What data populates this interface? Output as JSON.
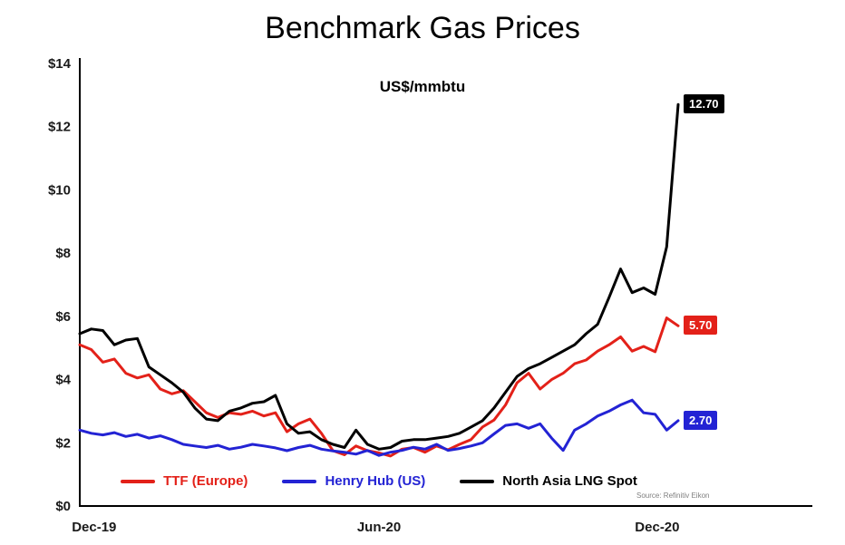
{
  "title": "Benchmark Gas Prices",
  "subtitle": "US$/mmbtu",
  "source": "Source: Refinitiv Eikon",
  "chart_data": {
    "type": "line",
    "title": "Benchmark Gas Prices",
    "subtitle_unit": "US$/mmbtu",
    "ylim": [
      0,
      14
    ],
    "grid": false,
    "legend_position": "bottom-inside",
    "yticks": {
      "labels": [
        "$0",
        "$2",
        "$4",
        "$6",
        "$8",
        "$10",
        "$12",
        "$14"
      ],
      "values": [
        0,
        2,
        4,
        6,
        8,
        10,
        12,
        14
      ]
    },
    "xticks": [
      {
        "label": "Dec-19",
        "pos": 0.024
      },
      {
        "label": "Jun-20",
        "pos": 0.5
      },
      {
        "label": "Dec-20",
        "pos": 0.965
      }
    ],
    "series": [
      {
        "name": "TTF (Europe)",
        "color": "#e32119",
        "end_label": "5.70",
        "values": [
          5.1,
          4.95,
          4.55,
          4.65,
          4.2,
          4.05,
          4.15,
          3.7,
          3.55,
          3.65,
          3.3,
          2.95,
          2.8,
          2.95,
          2.9,
          3.0,
          2.85,
          2.95,
          2.35,
          2.6,
          2.75,
          2.3,
          1.75,
          1.62,
          1.9,
          1.75,
          1.68,
          1.58,
          1.8,
          1.85,
          1.7,
          1.9,
          1.78,
          1.95,
          2.1,
          2.5,
          2.72,
          3.2,
          3.9,
          4.2,
          3.7,
          4.0,
          4.2,
          4.5,
          4.62,
          4.9,
          5.1,
          5.35,
          4.9,
          5.05,
          4.88,
          5.95,
          5.7
        ]
      },
      {
        "name": "Henry Hub (US)",
        "color": "#2323d4",
        "end_label": "2.70",
        "values": [
          2.4,
          2.3,
          2.25,
          2.32,
          2.2,
          2.27,
          2.15,
          2.22,
          2.1,
          1.95,
          1.9,
          1.85,
          1.92,
          1.8,
          1.86,
          1.95,
          1.9,
          1.84,
          1.75,
          1.85,
          1.92,
          1.8,
          1.74,
          1.7,
          1.64,
          1.76,
          1.6,
          1.7,
          1.76,
          1.86,
          1.8,
          1.95,
          1.76,
          1.82,
          1.9,
          2.0,
          2.28,
          2.55,
          2.6,
          2.46,
          2.6,
          2.15,
          1.76,
          2.4,
          2.6,
          2.85,
          3.0,
          3.2,
          3.35,
          2.95,
          2.9,
          2.4,
          2.7
        ]
      },
      {
        "name": "North Asia LNG Spot",
        "color": "#000000",
        "end_label": "12.70",
        "values": [
          5.45,
          5.6,
          5.55,
          5.1,
          5.25,
          5.3,
          4.4,
          4.15,
          3.9,
          3.6,
          3.1,
          2.75,
          2.7,
          3.0,
          3.1,
          3.25,
          3.3,
          3.5,
          2.6,
          2.3,
          2.35,
          2.1,
          1.95,
          1.85,
          2.4,
          1.95,
          1.8,
          1.85,
          2.05,
          2.1,
          2.1,
          2.15,
          2.2,
          2.3,
          2.5,
          2.7,
          3.1,
          3.6,
          4.1,
          4.35,
          4.5,
          4.7,
          4.9,
          5.1,
          5.45,
          5.75,
          6.6,
          7.5,
          6.75,
          6.9,
          6.7,
          8.2,
          12.7
        ]
      }
    ]
  }
}
